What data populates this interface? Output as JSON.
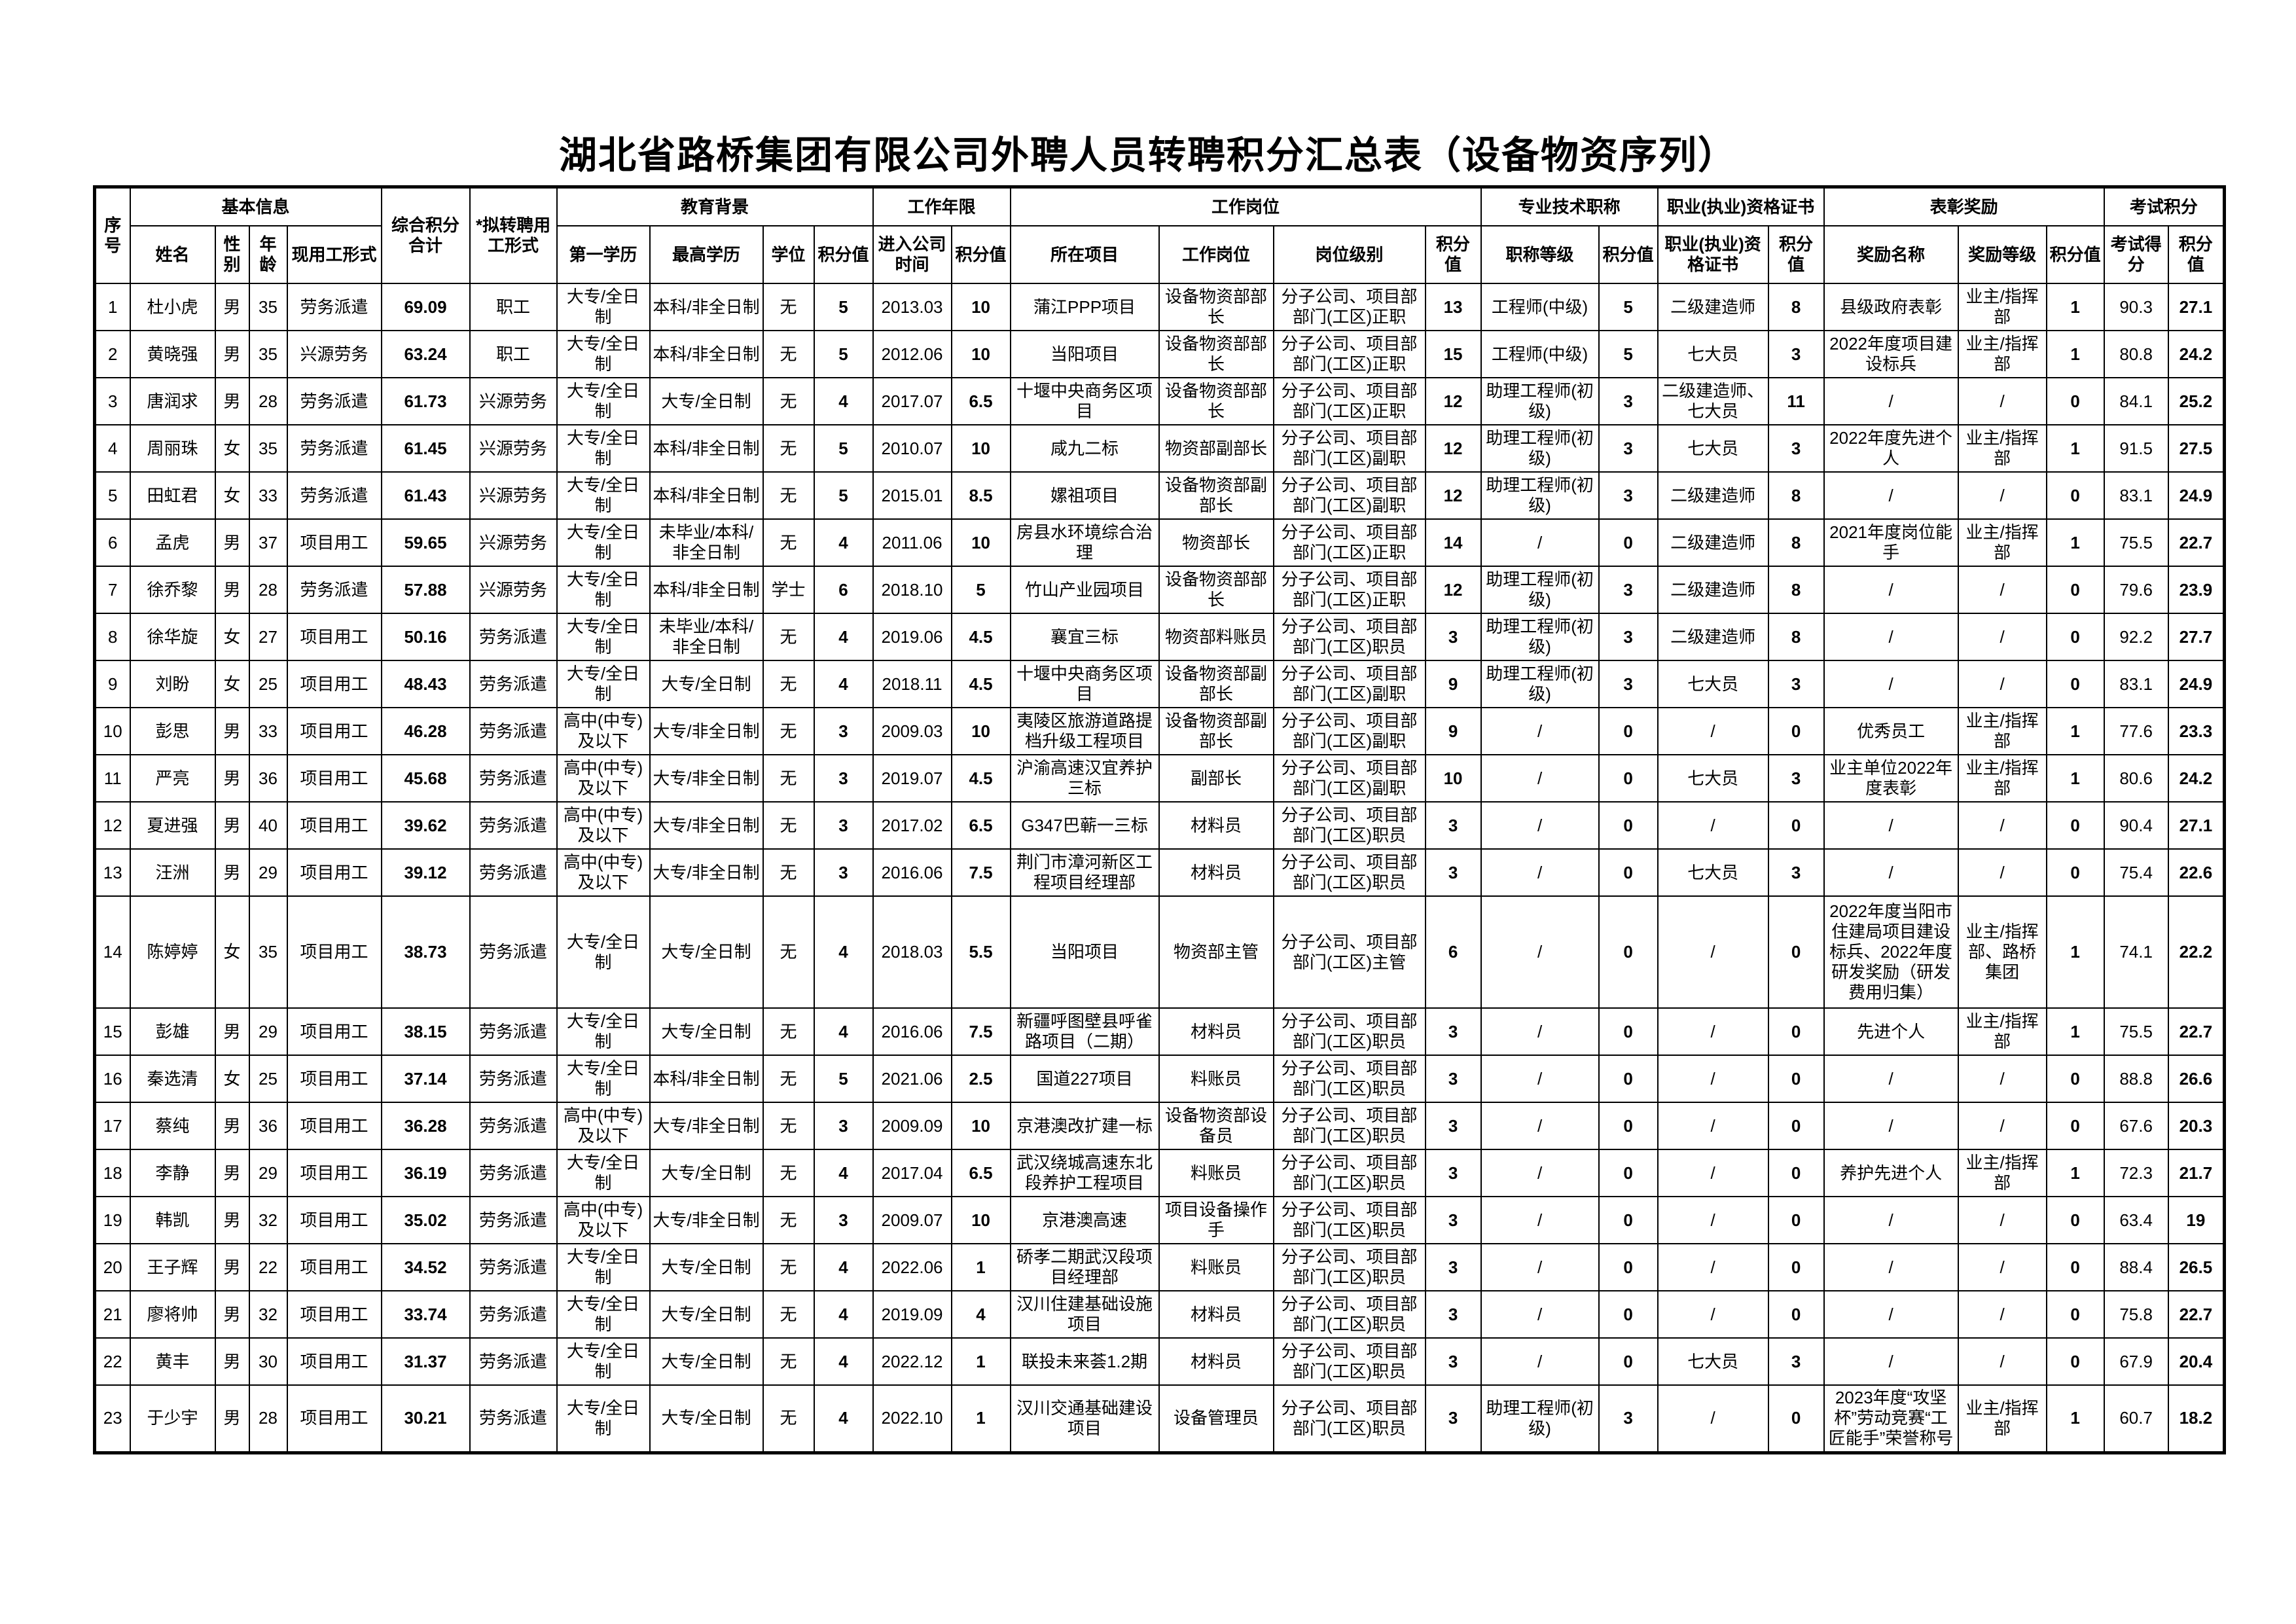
{
  "title": "湖北省路桥集团有限公司外聘人员转聘积分汇总表（设备物资序列）",
  "header_groups": {
    "seq": "序号",
    "basic": "基本信息",
    "total": "综合积分合计",
    "proposed": "*拟转聘用工形式",
    "education": "教育背景",
    "years": "工作年限",
    "post": "工作岗位",
    "title": "专业技术职称",
    "cert": "职业(执业)资格证书",
    "award": "表彰奖励",
    "exam": "考试积分"
  },
  "header_columns": {
    "name": "姓名",
    "gender": "性别",
    "age": "年龄",
    "current_form": "现用工形式",
    "first_edu": "第一学历",
    "highest_edu": "最高学历",
    "degree": "学位",
    "edu_score": "积分值",
    "join_date": "进入公司时间",
    "years_score": "积分值",
    "project": "所在项目",
    "position": "工作岗位",
    "level": "岗位级别",
    "post_score": "积分值",
    "title_grade": "职称等级",
    "title_score": "积分值",
    "cert_name": "职业(执业)资格证书",
    "cert_score": "积分值",
    "award_name": "奖励名称",
    "award_level": "奖励等级",
    "award_score": "积分值",
    "exam_raw": "考试得分",
    "exam_score": "积分值"
  },
  "rows": [
    [
      "1",
      "杜小虎",
      "男",
      "35",
      "劳务派遣",
      "69.09",
      "职工",
      "大专/全日制",
      "本科/非全日制",
      "无",
      "5",
      "2013.03",
      "10",
      "蒲江PPP项目",
      "设备物资部部长",
      "分子公司、项目部部门(工区)正职",
      "13",
      "工程师(中级)",
      "5",
      "二级建造师",
      "8",
      "县级政府表彰",
      "业主/指挥部",
      "1",
      "90.3",
      "27.1"
    ],
    [
      "2",
      "黄晓强",
      "男",
      "35",
      "兴源劳务",
      "63.24",
      "职工",
      "大专/全日制",
      "本科/非全日制",
      "无",
      "5",
      "2012.06",
      "10",
      "当阳项目",
      "设备物资部部长",
      "分子公司、项目部部门(工区)正职",
      "15",
      "工程师(中级)",
      "5",
      "七大员",
      "3",
      "2022年度项目建设标兵",
      "业主/指挥部",
      "1",
      "80.8",
      "24.2"
    ],
    [
      "3",
      "唐润求",
      "男",
      "28",
      "劳务派遣",
      "61.73",
      "兴源劳务",
      "大专/全日制",
      "大专/全日制",
      "无",
      "4",
      "2017.07",
      "6.5",
      "十堰中央商务区项目",
      "设备物资部部长",
      "分子公司、项目部部门(工区)正职",
      "12",
      "助理工程师(初级)",
      "3",
      "二级建造师、七大员",
      "11",
      "/",
      "/",
      "0",
      "84.1",
      "25.2"
    ],
    [
      "4",
      "周丽珠",
      "女",
      "35",
      "劳务派遣",
      "61.45",
      "兴源劳务",
      "大专/全日制",
      "本科/非全日制",
      "无",
      "5",
      "2010.07",
      "10",
      "咸九二标",
      "物资部副部长",
      "分子公司、项目部部门(工区)副职",
      "12",
      "助理工程师(初级)",
      "3",
      "七大员",
      "3",
      "2022年度先进个人",
      "业主/指挥部",
      "1",
      "91.5",
      "27.5"
    ],
    [
      "5",
      "田虹君",
      "女",
      "33",
      "劳务派遣",
      "61.43",
      "兴源劳务",
      "大专/全日制",
      "本科/非全日制",
      "无",
      "5",
      "2015.01",
      "8.5",
      "嫘祖项目",
      "设备物资部副部长",
      "分子公司、项目部部门(工区)副职",
      "12",
      "助理工程师(初级)",
      "3",
      "二级建造师",
      "8",
      "/",
      "/",
      "0",
      "83.1",
      "24.9"
    ],
    [
      "6",
      "孟虎",
      "男",
      "37",
      "项目用工",
      "59.65",
      "兴源劳务",
      "大专/全日制",
      "未毕业/本科/非全日制",
      "无",
      "4",
      "2011.06",
      "10",
      "房县水环境综合治理",
      "物资部长",
      "分子公司、项目部部门(工区)正职",
      "14",
      "/",
      "0",
      "二级建造师",
      "8",
      "2021年度岗位能手",
      "业主/指挥部",
      "1",
      "75.5",
      "22.7"
    ],
    [
      "7",
      "徐乔黎",
      "男",
      "28",
      "劳务派遣",
      "57.88",
      "兴源劳务",
      "大专/全日制",
      "本科/非全日制",
      "学士",
      "6",
      "2018.10",
      "5",
      "竹山产业园项目",
      "设备物资部部长",
      "分子公司、项目部部门(工区)正职",
      "12",
      "助理工程师(初级)",
      "3",
      "二级建造师",
      "8",
      "/",
      "/",
      "0",
      "79.6",
      "23.9"
    ],
    [
      "8",
      "徐华旋",
      "女",
      "27",
      "项目用工",
      "50.16",
      "劳务派遣",
      "大专/全日制",
      "未毕业/本科/非全日制",
      "无",
      "4",
      "2019.06",
      "4.5",
      "襄宜三标",
      "物资部料账员",
      "分子公司、项目部部门(工区)职员",
      "3",
      "助理工程师(初级)",
      "3",
      "二级建造师",
      "8",
      "/",
      "/",
      "0",
      "92.2",
      "27.7"
    ],
    [
      "9",
      "刘盼",
      "女",
      "25",
      "项目用工",
      "48.43",
      "劳务派遣",
      "大专/全日制",
      "大专/全日制",
      "无",
      "4",
      "2018.11",
      "4.5",
      "十堰中央商务区项目",
      "设备物资部副部长",
      "分子公司、项目部部门(工区)副职",
      "9",
      "助理工程师(初级)",
      "3",
      "七大员",
      "3",
      "/",
      "/",
      "0",
      "83.1",
      "24.9"
    ],
    [
      "10",
      "彭思",
      "男",
      "33",
      "项目用工",
      "46.28",
      "劳务派遣",
      "高中(中专)及以下",
      "大专/非全日制",
      "无",
      "3",
      "2009.03",
      "10",
      "夷陵区旅游道路提档升级工程项目",
      "设备物资部副部长",
      "分子公司、项目部部门(工区)副职",
      "9",
      "/",
      "0",
      "/",
      "0",
      "优秀员工",
      "业主/指挥部",
      "1",
      "77.6",
      "23.3"
    ],
    [
      "11",
      "严亮",
      "男",
      "36",
      "项目用工",
      "45.68",
      "劳务派遣",
      "高中(中专)及以下",
      "大专/非全日制",
      "无",
      "3",
      "2019.07",
      "4.5",
      "沪渝高速汉宜养护三标",
      "副部长",
      "分子公司、项目部部门(工区)副职",
      "10",
      "/",
      "0",
      "七大员",
      "3",
      "业主单位2022年度表彰",
      "业主/指挥部",
      "1",
      "80.6",
      "24.2"
    ],
    [
      "12",
      "夏进强",
      "男",
      "40",
      "项目用工",
      "39.62",
      "劳务派遣",
      "高中(中专)及以下",
      "大专/非全日制",
      "无",
      "3",
      "2017.02",
      "6.5",
      "G347巴蕲一三标",
      "材料员",
      "分子公司、项目部部门(工区)职员",
      "3",
      "/",
      "0",
      "/",
      "0",
      "/",
      "/",
      "0",
      "90.4",
      "27.1"
    ],
    [
      "13",
      "汪洲",
      "男",
      "29",
      "项目用工",
      "39.12",
      "劳务派遣",
      "高中(中专)及以下",
      "大专/非全日制",
      "无",
      "3",
      "2016.06",
      "7.5",
      "荆门市漳河新区工程项目经理部",
      "材料员",
      "分子公司、项目部部门(工区)职员",
      "3",
      "/",
      "0",
      "七大员",
      "3",
      "/",
      "/",
      "0",
      "75.4",
      "22.6"
    ],
    [
      "14",
      "陈婷婷",
      "女",
      "35",
      "项目用工",
      "38.73",
      "劳务派遣",
      "大专/全日制",
      "大专/全日制",
      "无",
      "4",
      "2018.03",
      "5.5",
      "当阳项目",
      "物资部主管",
      "分子公司、项目部部门(工区)主管",
      "6",
      "/",
      "0",
      "/",
      "0",
      "2022年度当阳市住建局项目建设标兵、2022年度研发奖励（研发费用归集）",
      "业主/指挥部、路桥集团",
      "1",
      "74.1",
      "22.2"
    ],
    [
      "15",
      "彭雄",
      "男",
      "29",
      "项目用工",
      "38.15",
      "劳务派遣",
      "大专/全日制",
      "大专/全日制",
      "无",
      "4",
      "2016.06",
      "7.5",
      "新疆呼图壁县呼雀路项目（二期）",
      "材料员",
      "分子公司、项目部部门(工区)职员",
      "3",
      "/",
      "0",
      "/",
      "0",
      "先进个人",
      "业主/指挥部",
      "1",
      "75.5",
      "22.7"
    ],
    [
      "16",
      "秦选清",
      "女",
      "25",
      "项目用工",
      "37.14",
      "劳务派遣",
      "大专/全日制",
      "本科/非全日制",
      "无",
      "5",
      "2021.06",
      "2.5",
      "国道227项目",
      "料账员",
      "分子公司、项目部部门(工区)职员",
      "3",
      "/",
      "0",
      "/",
      "0",
      "/",
      "/",
      "0",
      "88.8",
      "26.6"
    ],
    [
      "17",
      "蔡纯",
      "男",
      "36",
      "项目用工",
      "36.28",
      "劳务派遣",
      "高中(中专)及以下",
      "大专/非全日制",
      "无",
      "3",
      "2009.09",
      "10",
      "京港澳改扩建一标",
      "设备物资部设备员",
      "分子公司、项目部部门(工区)职员",
      "3",
      "/",
      "0",
      "/",
      "0",
      "/",
      "/",
      "0",
      "67.6",
      "20.3"
    ],
    [
      "18",
      "李静",
      "男",
      "29",
      "项目用工",
      "36.19",
      "劳务派遣",
      "大专/全日制",
      "大专/全日制",
      "无",
      "4",
      "2017.04",
      "6.5",
      "武汉绕城高速东北段养护工程项目",
      "料账员",
      "分子公司、项目部部门(工区)职员",
      "3",
      "/",
      "0",
      "/",
      "0",
      "养护先进个人",
      "业主/指挥部",
      "1",
      "72.3",
      "21.7"
    ],
    [
      "19",
      "韩凯",
      "男",
      "32",
      "项目用工",
      "35.02",
      "劳务派遣",
      "高中(中专)及以下",
      "大专/非全日制",
      "无",
      "3",
      "2009.07",
      "10",
      "京港澳高速",
      "项目设备操作手",
      "分子公司、项目部部门(工区)职员",
      "3",
      "/",
      "0",
      "/",
      "0",
      "/",
      "/",
      "0",
      "63.4",
      "19"
    ],
    [
      "20",
      "王子辉",
      "男",
      "22",
      "项目用工",
      "34.52",
      "劳务派遣",
      "大专/全日制",
      "大专/全日制",
      "无",
      "4",
      "2022.06",
      "1",
      "硚孝二期武汉段项目经理部",
      "料账员",
      "分子公司、项目部部门(工区)职员",
      "3",
      "/",
      "0",
      "/",
      "0",
      "/",
      "/",
      "0",
      "88.4",
      "26.5"
    ],
    [
      "21",
      "廖将帅",
      "男",
      "32",
      "项目用工",
      "33.74",
      "劳务派遣",
      "大专/全日制",
      "大专/全日制",
      "无",
      "4",
      "2019.09",
      "4",
      "汉川住建基础设施项目",
      "材料员",
      "分子公司、项目部部门(工区)职员",
      "3",
      "/",
      "0",
      "/",
      "0",
      "/",
      "/",
      "0",
      "75.8",
      "22.7"
    ],
    [
      "22",
      "黄丰",
      "男",
      "30",
      "项目用工",
      "31.37",
      "劳务派遣",
      "大专/全日制",
      "大专/全日制",
      "无",
      "4",
      "2022.12",
      "1",
      "联投未来荟1.2期",
      "材料员",
      "分子公司、项目部部门(工区)职员",
      "3",
      "/",
      "0",
      "七大员",
      "3",
      "/",
      "/",
      "0",
      "67.9",
      "20.4"
    ],
    [
      "23",
      "于少宇",
      "男",
      "28",
      "项目用工",
      "30.21",
      "劳务派遣",
      "大专/全日制",
      "大专/全日制",
      "无",
      "4",
      "2022.10",
      "1",
      "汉川交通基础建设项目",
      "设备管理员",
      "分子公司、项目部部门(工区)职员",
      "3",
      "助理工程师(初级)",
      "3",
      "/",
      "0",
      "2023年度“攻坚杯”劳动竞赛“工匠能手”荣誉称号",
      "业主/指挥部",
      "1",
      "60.7",
      "18.2"
    ]
  ]
}
